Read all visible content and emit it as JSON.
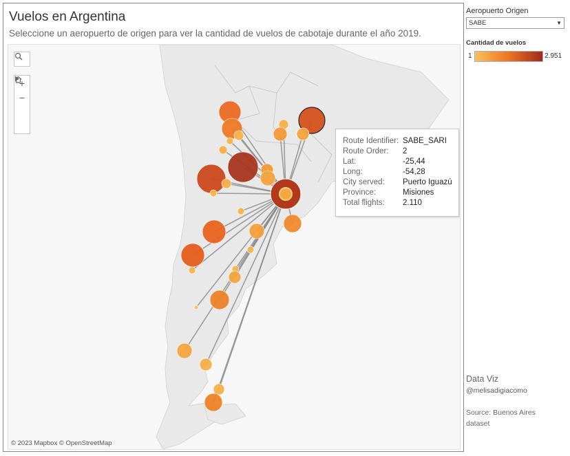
{
  "header": {
    "title": "Vuelos en Argentina",
    "subtitle": "Seleccione un aeropuerto de origen para ver la cantidad de vuelos de cabotaje durante el año 2019."
  },
  "map": {
    "attribution": "© 2023 Mapbox  © OpenStreetMap",
    "tools": {
      "search_icon": "search-icon",
      "zoom_in": "+",
      "zoom_out": "−",
      "home_icon": "home-icon",
      "expand_icon": "play-icon"
    },
    "colors": {
      "scale_low": "#f8c060",
      "scale_mid": "#ec7424",
      "scale_high": "#9e2a1c",
      "route_line": "#888888",
      "land": "#e9e9e9",
      "water": "#f7f7f7"
    },
    "hub": {
      "airport": "SABE"
    }
  },
  "tooltip": {
    "rows": [
      {
        "key": "Route Identifier:",
        "value": "SABE_SARI"
      },
      {
        "key": "Route Order:",
        "value": "2"
      },
      {
        "key": "Lat:",
        "value": "-25,44"
      },
      {
        "key": "Long:",
        "value": "-54,28"
      },
      {
        "key": "City served:",
        "value": "Puerto Iguazú"
      },
      {
        "key": "Province:",
        "value": "Misiones"
      },
      {
        "key": "Total flights:",
        "value": "2.110"
      }
    ]
  },
  "filter": {
    "label": "Aeropuerto Origen",
    "selected": "SABE"
  },
  "legend": {
    "title": "Cantidad de vuelos",
    "min": "1",
    "max": "2.951"
  },
  "credits": {
    "line1": "Data Viz",
    "line2": "@melisadigiacomo",
    "line3": "Source: Buenos Aires dataset"
  }
}
